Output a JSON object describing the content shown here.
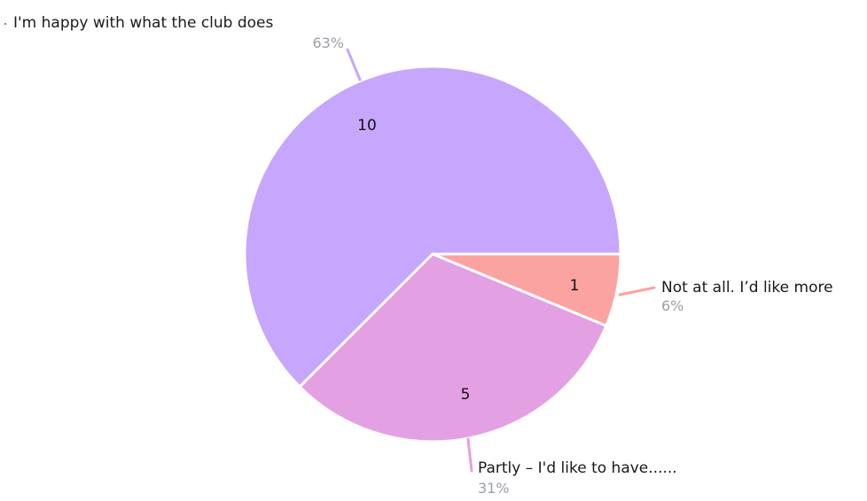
{
  "chart_data": {
    "type": "pie",
    "slices": [
      {
        "label": "I'm happy with what the club does",
        "value": 10,
        "percent": "63%",
        "color": "#c6a7fd"
      },
      {
        "label": "Not at all. I’d like more",
        "value": 1,
        "percent": "6%",
        "color": "#fba3a0"
      },
      {
        "label": "Partly – I'd like to have......",
        "value": 5,
        "percent": "31%",
        "color": "#e3a0e3"
      }
    ]
  },
  "colors": {
    "leader_happy": "#c6a7fd",
    "leader_notatall": "#fba3a0",
    "leader_partly": "#e3a0e3"
  }
}
